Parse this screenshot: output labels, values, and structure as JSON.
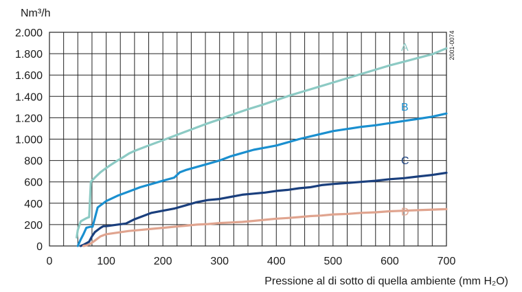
{
  "chart_data": {
    "type": "line",
    "ylabel": "Nm³/h",
    "xlabel": "Pressione al di sotto di quella ambiente (mm H₂O)",
    "code": "2001-0074",
    "xlim": [
      0,
      700
    ],
    "ylim": [
      0,
      2000
    ],
    "grid": true,
    "x_ticks": [
      0,
      100,
      200,
      300,
      400,
      500,
      600,
      700
    ],
    "x_tick_labels": [
      "0",
      "100",
      "200",
      "300",
      "400",
      "500",
      "600",
      "700"
    ],
    "y_ticks": [
      0,
      200,
      400,
      600,
      800,
      1000,
      1200,
      1400,
      1600,
      1800,
      2000
    ],
    "y_tick_labels": [
      "0",
      "200",
      "400",
      "600",
      "800",
      "1.000",
      "1.200",
      "1.400",
      "1.600",
      "1.800",
      "2.000"
    ],
    "series": [
      {
        "name": "A",
        "color": "#8ccac4",
        "x": [
          48,
          50,
          55,
          65,
          70,
          73,
          80,
          90,
          100,
          110,
          120,
          130,
          140,
          150,
          175,
          200,
          225,
          250,
          275,
          300,
          325,
          350,
          375,
          400,
          425,
          450,
          475,
          500,
          525,
          550,
          575,
          600,
          625,
          650,
          675,
          700
        ],
        "y": [
          80,
          150,
          230,
          260,
          270,
          600,
          640,
          690,
          730,
          765,
          800,
          830,
          865,
          890,
          940,
          990,
          1040,
          1090,
          1140,
          1185,
          1235,
          1280,
          1320,
          1365,
          1410,
          1450,
          1490,
          1530,
          1570,
          1610,
          1650,
          1690,
          1725,
          1760,
          1795,
          1850
        ]
      },
      {
        "name": "B",
        "color": "#1a8fcf",
        "x": [
          50,
          55,
          60,
          65,
          72,
          76,
          80,
          85,
          90,
          100,
          120,
          140,
          160,
          180,
          200,
          220,
          230,
          240,
          260,
          280,
          300,
          320,
          340,
          360,
          380,
          400,
          420,
          440,
          460,
          480,
          500,
          525,
          550,
          575,
          600,
          625,
          650,
          675,
          700
        ],
        "y": [
          0,
          60,
          110,
          170,
          180,
          180,
          260,
          360,
          380,
          420,
          470,
          510,
          550,
          580,
          610,
          640,
          690,
          710,
          740,
          770,
          800,
          840,
          870,
          900,
          920,
          940,
          970,
          1000,
          1025,
          1050,
          1075,
          1095,
          1115,
          1130,
          1150,
          1170,
          1190,
          1210,
          1240
        ]
      },
      {
        "name": "C",
        "color": "#1a3f7d",
        "x": [
          55,
          60,
          70,
          75,
          80,
          90,
          95,
          100,
          120,
          135,
          150,
          165,
          180,
          200,
          220,
          240,
          260,
          280,
          300,
          320,
          340,
          360,
          380,
          400,
          420,
          440,
          460,
          480,
          500,
          525,
          550,
          575,
          600,
          625,
          650,
          675,
          700
        ],
        "y": [
          0,
          10,
          40,
          90,
          130,
          170,
          185,
          185,
          200,
          210,
          250,
          280,
          310,
          330,
          350,
          380,
          410,
          430,
          440,
          460,
          480,
          490,
          500,
          515,
          525,
          540,
          550,
          570,
          580,
          590,
          600,
          610,
          625,
          635,
          650,
          665,
          685
        ]
      },
      {
        "name": "D",
        "color": "#e0a48f",
        "x": [
          60,
          65,
          72,
          80,
          90,
          100,
          120,
          140,
          160,
          180,
          200,
          220,
          240,
          260,
          280,
          300,
          320,
          340,
          360,
          380,
          400,
          420,
          440,
          460,
          480,
          500,
          525,
          550,
          575,
          600,
          625,
          650,
          675,
          700
        ],
        "y": [
          0,
          5,
          20,
          50,
          90,
          110,
          125,
          140,
          150,
          160,
          170,
          180,
          190,
          200,
          205,
          215,
          220,
          225,
          235,
          245,
          255,
          262,
          270,
          280,
          285,
          295,
          300,
          310,
          315,
          325,
          330,
          335,
          340,
          345
        ]
      }
    ]
  }
}
